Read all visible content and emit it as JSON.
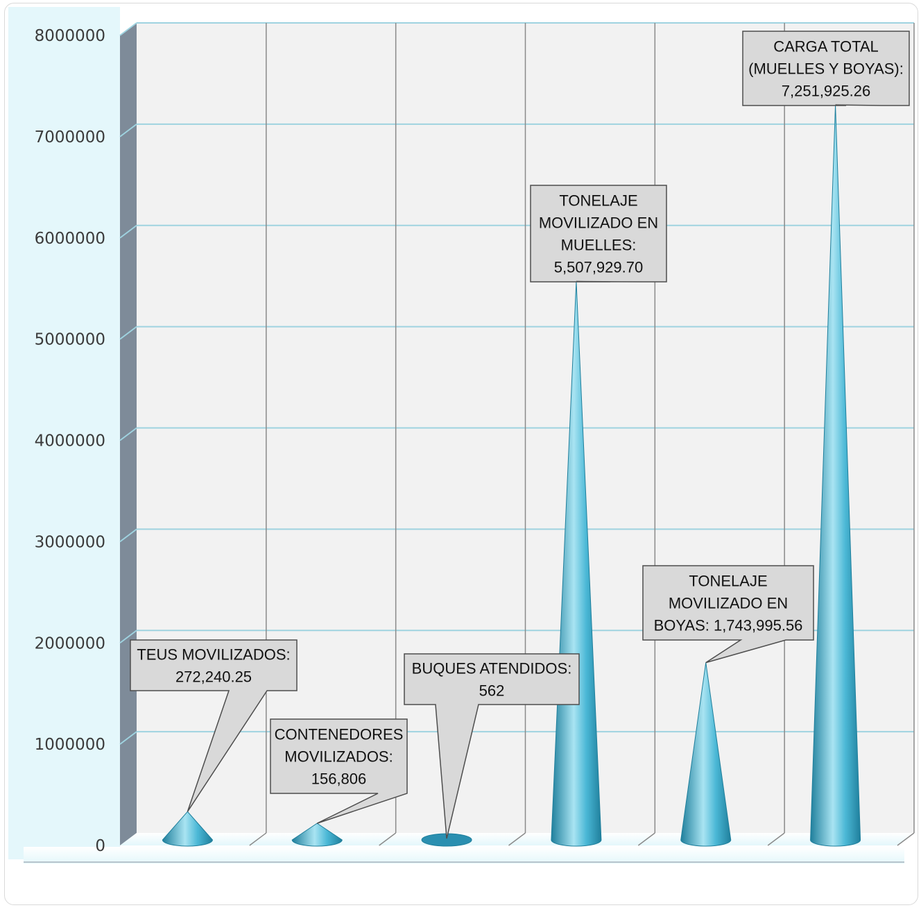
{
  "chart_data": {
    "type": "bar",
    "title": "",
    "xlabel": "",
    "ylabel": "",
    "ylim": [
      0,
      8000000
    ],
    "yticks": [
      "0",
      "1000000",
      "2000000",
      "3000000",
      "4000000",
      "5000000",
      "6000000",
      "7000000",
      "8000000"
    ],
    "grid": true,
    "categories": [
      "TEUS MOVILIZADOS",
      "CONTENEDORES MOVILIZADOS",
      "BUQUES ATENDIDOS",
      "TONELAJE MOVILIZADO EN MUELLES",
      "TONELAJE MOVILIZADO EN BOYAS",
      "CARGA TOTAL (MUELLES Y BOYAS)"
    ],
    "values": [
      272240.25,
      156806,
      562,
      5507929.7,
      1743995.56,
      7251925.26
    ],
    "data_labels": [
      [
        "TEUS MOVILIZADOS:",
        "272,240.25"
      ],
      [
        "CONTENEDORES",
        "MOVILIZADOS:",
        "156,806"
      ],
      [
        "BUQUES ATENDIDOS:",
        "562"
      ],
      [
        "TONELAJE",
        "MOVILIZADO EN",
        "MUELLES:",
        "5,507,929.70"
      ],
      [
        "TONELAJE",
        "MOVILIZADO EN",
        "BOYAS: 1,743,995.56"
      ],
      [
        "CARGA TOTAL",
        "(MUELLES Y BOYAS):",
        "7,251,925.26"
      ]
    ],
    "colors": {
      "cone": "#4bb8d6",
      "cone_dark": "#1f7f9c",
      "cone_light": "#a9e4f2",
      "grid": "#9fd3e0",
      "back_wall": "#f2f2f2",
      "side_wall": "#7e8b99",
      "floor": "#e4f7fb",
      "callout_fill": "#d9d9d9",
      "callout_stroke": "#4d4d4d"
    }
  }
}
